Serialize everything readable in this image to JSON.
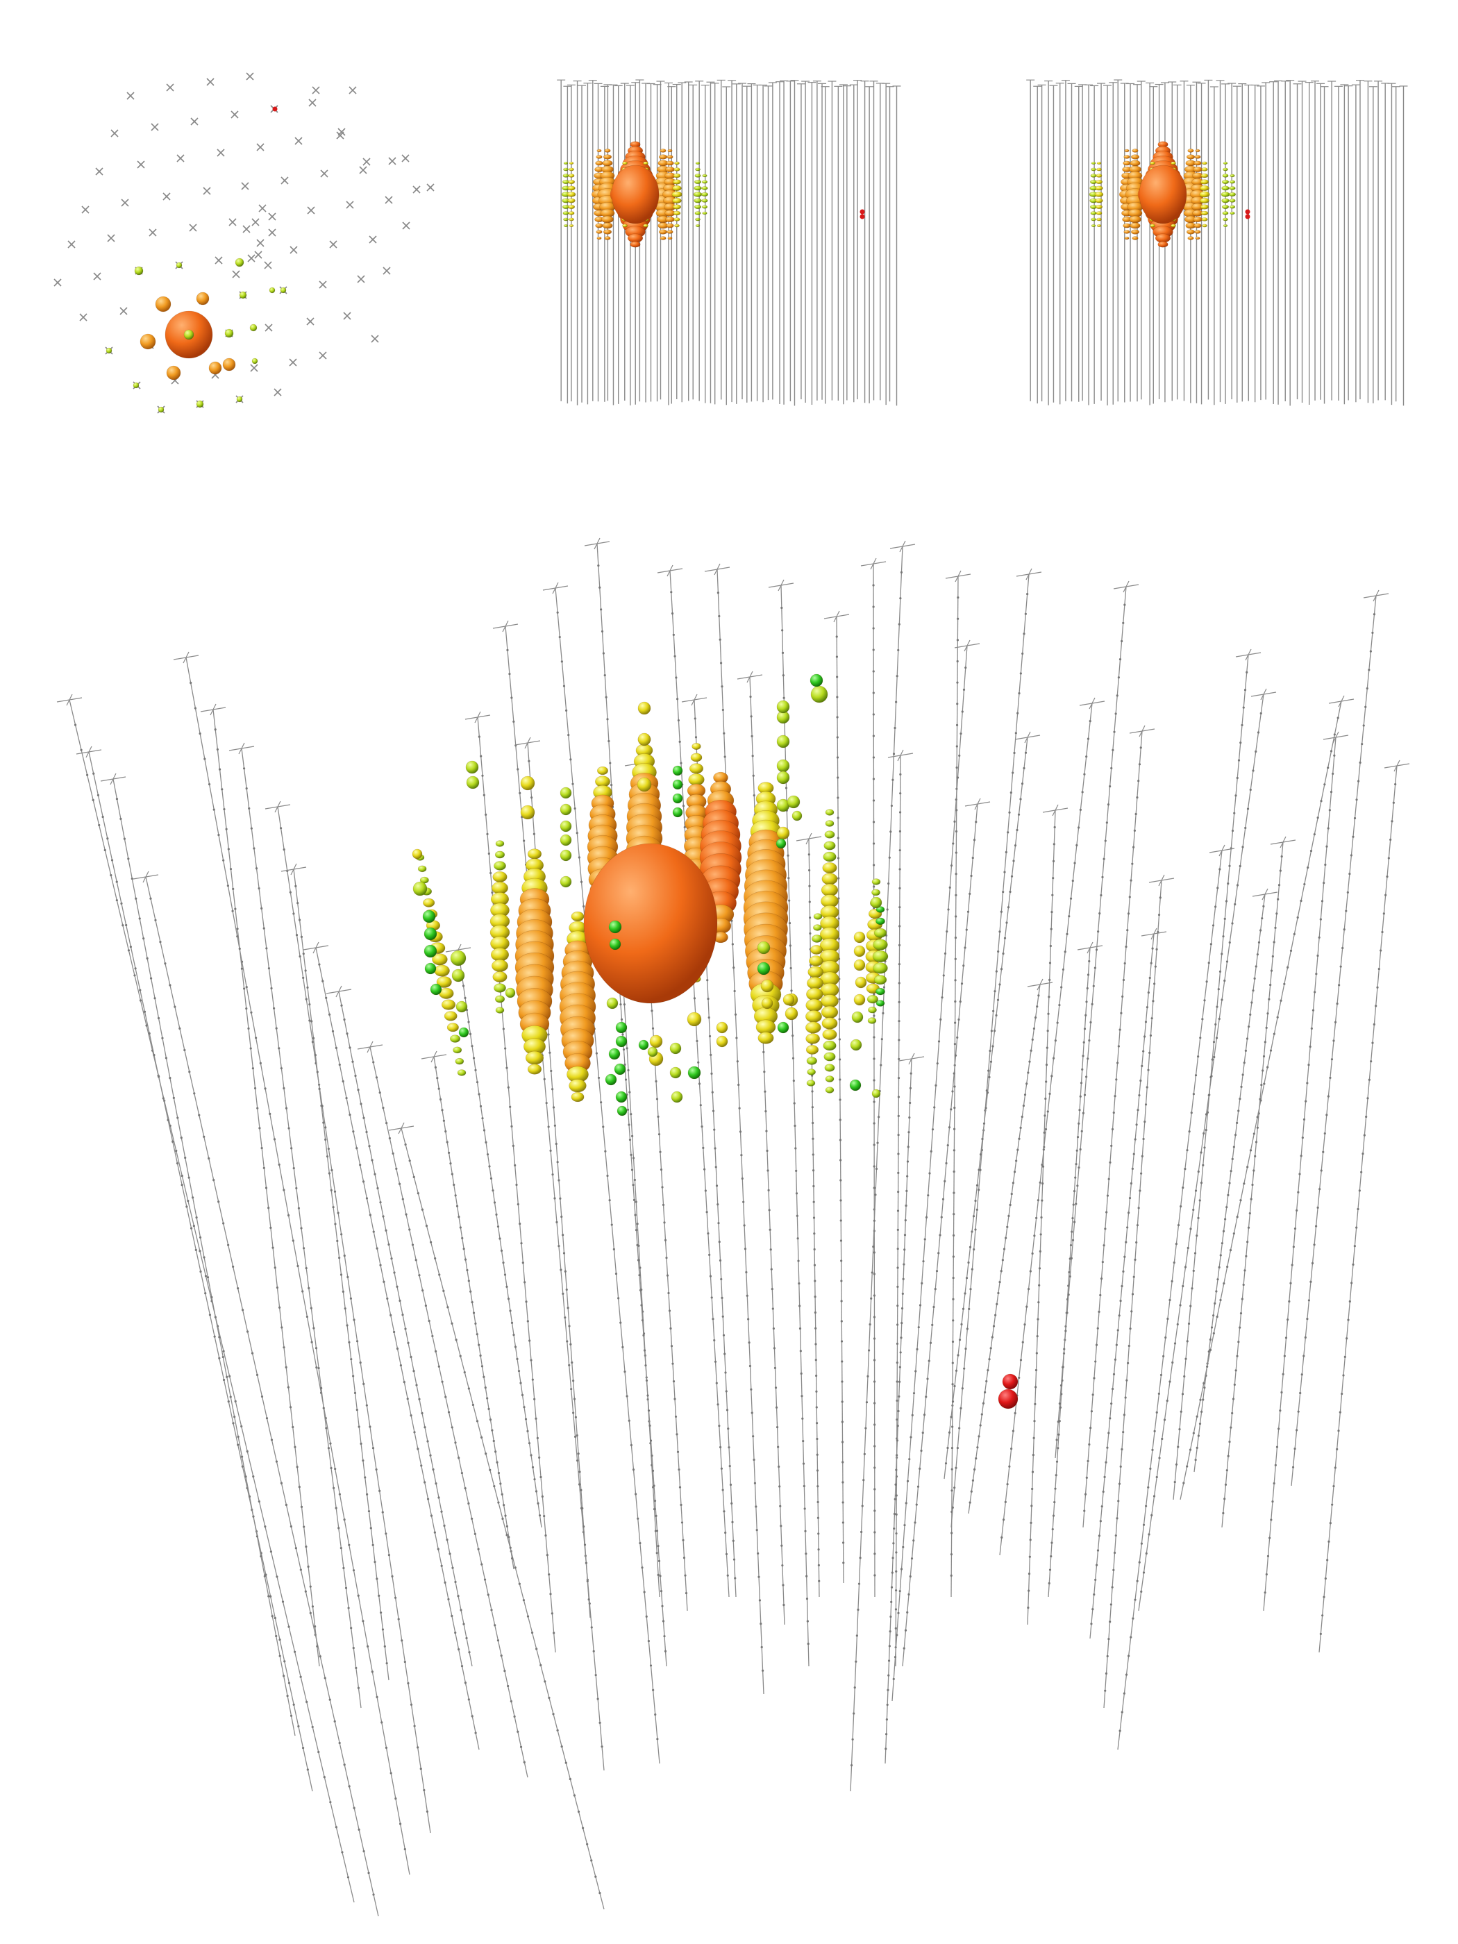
{
  "panels": [
    {
      "name": "top-view"
    },
    {
      "name": "side-view-a"
    },
    {
      "name": "side-view-b"
    },
    {
      "name": "perspective-view"
    }
  ],
  "colors": {
    "background": "#ffffff",
    "string": "#8a8a8a",
    "dom": "#777777",
    "early": "#d81818",
    "mid_orange": "#f07a18",
    "late_yellow": "#e8e020",
    "latest_green": "#30c820"
  },
  "icons": [
    "dom-cross-marker",
    "light-sphere"
  ]
}
